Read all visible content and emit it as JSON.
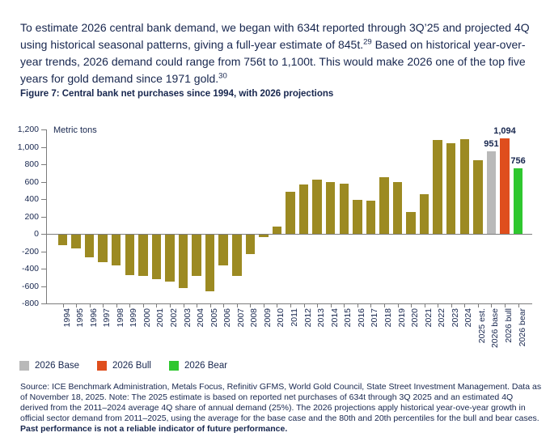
{
  "intro": {
    "segments": [
      {
        "t": "To estimate 2026 central bank demand, we began with 634t reported through 3Q’25 and projected 4Q using historical seasonal patterns, giving a full-year estimate of 845t."
      },
      {
        "t": "29",
        "sup": true
      },
      {
        "t": " Based on historical year-over-year trends, 2026 demand could range from 756t to 1,100t. This would make 2026 one of the top five years for gold demand since 1971 gold."
      },
      {
        "t": "30",
        "sup": true
      }
    ]
  },
  "figure": {
    "title": "Figure 7: Central bank net purchases since 1994, with 2026 projections"
  },
  "chart_data": {
    "type": "bar",
    "title": "Central bank net purchases since 1994, with 2026 projections",
    "ylabel": "Metric tons",
    "xlabel": "",
    "ylim": [
      -800,
      1200
    ],
    "ytick_step": 200,
    "grid": false,
    "legend_position": "bottom-left",
    "categories": [
      "1994",
      "1995",
      "1996",
      "1997",
      "1998",
      "1999",
      "2000",
      "2001",
      "2002",
      "2003",
      "2004",
      "2005",
      "2006",
      "2007",
      "2008",
      "2009",
      "2010",
      "2011",
      "2012",
      "2013",
      "2014",
      "2015",
      "2016",
      "2017",
      "2018",
      "2019",
      "2020",
      "2021",
      "2022",
      "2023",
      "2024",
      "2025 est.",
      "2026 base",
      "2026 bull",
      "2026 bear"
    ],
    "values": [
      -130,
      -170,
      -270,
      -325,
      -360,
      -475,
      -480,
      -520,
      -545,
      -620,
      -480,
      -660,
      -365,
      -485,
      -235,
      -40,
      80,
      480,
      570,
      625,
      600,
      575,
      390,
      380,
      650,
      600,
      250,
      455,
      1080,
      1040,
      1085,
      845,
      951,
      1094,
      756
    ],
    "bar_styles": {
      "default": "#9C8A22",
      "2026 base": "#B9B9B9",
      "2026 bull": "#DF4E1D",
      "2026 bear": "#2FC72F"
    },
    "data_labels": {
      "2026 base": "951",
      "2026 bull": "1,094",
      "2026 bear": "756"
    },
    "legend": [
      {
        "label": "2026 Base",
        "color": "#B9B9B9"
      },
      {
        "label": "2026 Bull",
        "color": "#DF4E1D"
      },
      {
        "label": "2026 Bear",
        "color": "#2FC72F"
      }
    ]
  },
  "source_note": {
    "text": "Source: ICE Benchmark Administration, Metals Focus, Refinitiv GFMS, World Gold Council, State Street Investment Management. Data as of November 18, 2025. Note: The 2025 estimate is based on reported net purchases of 634t through 3Q 2025 and an estimated 4Q derived from the 2011–2024 average 4Q share of annual demand (25%). The 2026 projections apply historical year-ove-year growth in official sector demand from 2011–2025, using the average for the base case and the 80th and 20th percentiles for the bull and bear cases. ",
    "bold_text": "Past performance is not a reliable indicator of future performance."
  }
}
